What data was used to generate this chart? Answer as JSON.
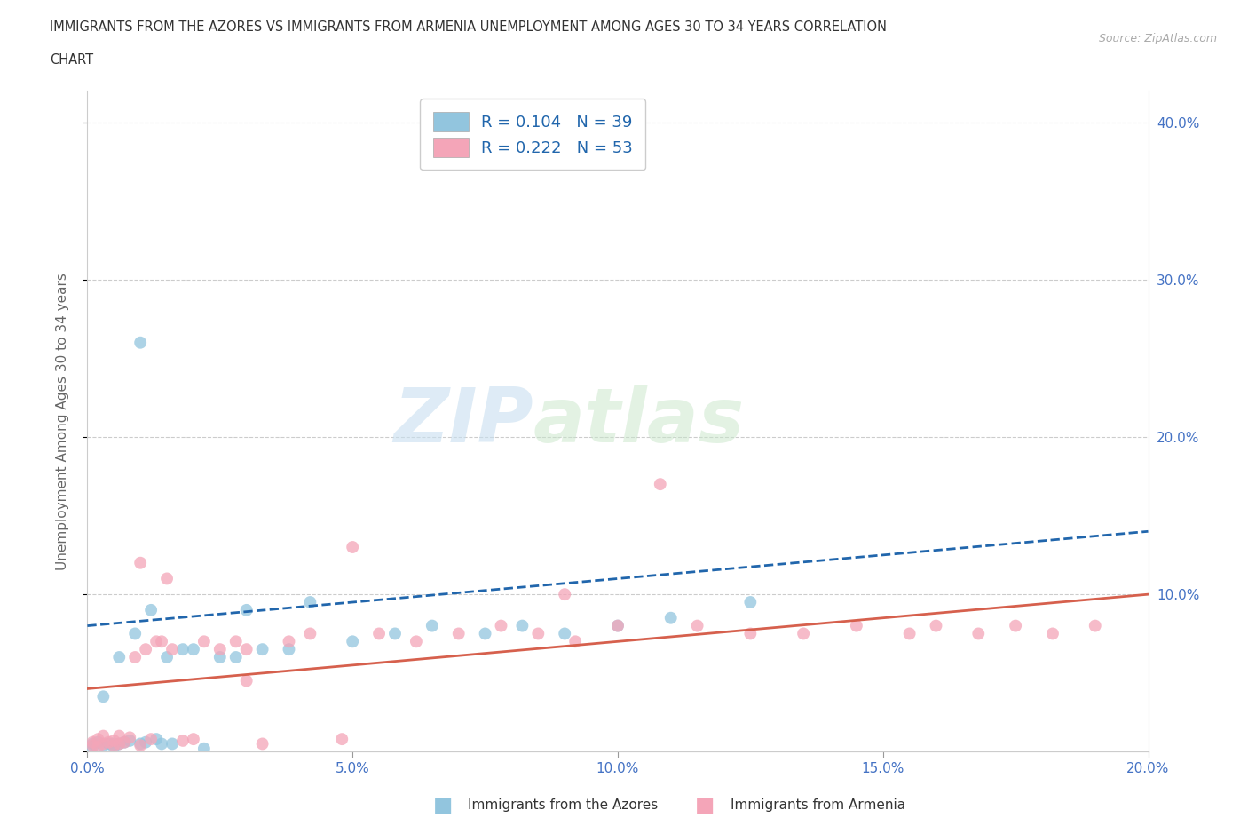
{
  "title_line1": "IMMIGRANTS FROM THE AZORES VS IMMIGRANTS FROM ARMENIA UNEMPLOYMENT AMONG AGES 30 TO 34 YEARS CORRELATION",
  "title_line2": "CHART",
  "source": "Source: ZipAtlas.com",
  "ylabel": "Unemployment Among Ages 30 to 34 years",
  "xlim": [
    0.0,
    0.2
  ],
  "ylim": [
    0.0,
    0.42
  ],
  "xticks": [
    0.0,
    0.05,
    0.1,
    0.15,
    0.2
  ],
  "yticks": [
    0.0,
    0.1,
    0.2,
    0.3,
    0.4
  ],
  "xticklabels": [
    "0.0%",
    "5.0%",
    "10.0%",
    "15.0%",
    "20.0%"
  ],
  "left_yticklabels": [
    "",
    "",
    "",
    "",
    ""
  ],
  "right_yticklabels": [
    "",
    "10.0%",
    "20.0%",
    "30.0%",
    "40.0%"
  ],
  "color_azores": "#92c5de",
  "color_armenia": "#f4a5b8",
  "line_color_azores": "#2166ac",
  "line_color_armenia": "#d6604d",
  "R_azores": 0.104,
  "N_azores": 39,
  "R_armenia": 0.222,
  "N_armenia": 53,
  "azores_x": [
    0.001,
    0.001,
    0.002,
    0.003,
    0.003,
    0.004,
    0.005,
    0.005,
    0.006,
    0.006,
    0.007,
    0.008,
    0.009,
    0.01,
    0.011,
    0.012,
    0.013,
    0.014,
    0.015,
    0.016,
    0.018,
    0.02,
    0.022,
    0.025,
    0.028,
    0.03,
    0.033,
    0.038,
    0.042,
    0.05,
    0.058,
    0.065,
    0.075,
    0.082,
    0.09,
    0.1,
    0.11,
    0.125,
    0.01
  ],
  "azores_y": [
    0.005,
    0.003,
    0.006,
    0.004,
    0.035,
    0.005,
    0.003,
    0.005,
    0.06,
    0.005,
    0.006,
    0.007,
    0.075,
    0.005,
    0.006,
    0.09,
    0.008,
    0.005,
    0.06,
    0.005,
    0.065,
    0.065,
    0.002,
    0.06,
    0.06,
    0.09,
    0.065,
    0.065,
    0.095,
    0.07,
    0.075,
    0.08,
    0.075,
    0.08,
    0.075,
    0.08,
    0.085,
    0.095,
    0.26
  ],
  "armenia_x": [
    0.001,
    0.001,
    0.002,
    0.002,
    0.003,
    0.003,
    0.004,
    0.005,
    0.005,
    0.006,
    0.006,
    0.007,
    0.008,
    0.009,
    0.01,
    0.01,
    0.011,
    0.012,
    0.013,
    0.014,
    0.015,
    0.016,
    0.018,
    0.02,
    0.022,
    0.025,
    0.028,
    0.03,
    0.033,
    0.038,
    0.042,
    0.048,
    0.055,
    0.062,
    0.07,
    0.078,
    0.085,
    0.092,
    0.1,
    0.108,
    0.115,
    0.125,
    0.135,
    0.145,
    0.155,
    0.16,
    0.168,
    0.175,
    0.182,
    0.19,
    0.05,
    0.09,
    0.03
  ],
  "armenia_y": [
    0.004,
    0.006,
    0.003,
    0.008,
    0.005,
    0.01,
    0.006,
    0.004,
    0.007,
    0.005,
    0.01,
    0.006,
    0.009,
    0.06,
    0.004,
    0.12,
    0.065,
    0.008,
    0.07,
    0.07,
    0.11,
    0.065,
    0.007,
    0.008,
    0.07,
    0.065,
    0.07,
    0.065,
    0.005,
    0.07,
    0.075,
    0.008,
    0.075,
    0.07,
    0.075,
    0.08,
    0.075,
    0.07,
    0.08,
    0.17,
    0.08,
    0.075,
    0.075,
    0.08,
    0.075,
    0.08,
    0.075,
    0.08,
    0.075,
    0.08,
    0.13,
    0.1,
    0.045
  ],
  "azores_line_x": [
    0.0,
    0.2
  ],
  "azores_line_y": [
    0.08,
    0.14
  ],
  "armenia_line_x": [
    0.0,
    0.2
  ],
  "armenia_line_y": [
    0.04,
    0.1
  ],
  "watermark_zip": "ZIP",
  "watermark_atlas": "atlas",
  "background_color": "#ffffff",
  "grid_color": "#cccccc",
  "tick_color": "#4472c4",
  "marker_size": 100,
  "legend_R_color": "#2166ac",
  "legend_N_color": "#2166ac",
  "bottom_legend_azores": "Immigrants from the Azores",
  "bottom_legend_armenia": "Immigrants from Armenia"
}
